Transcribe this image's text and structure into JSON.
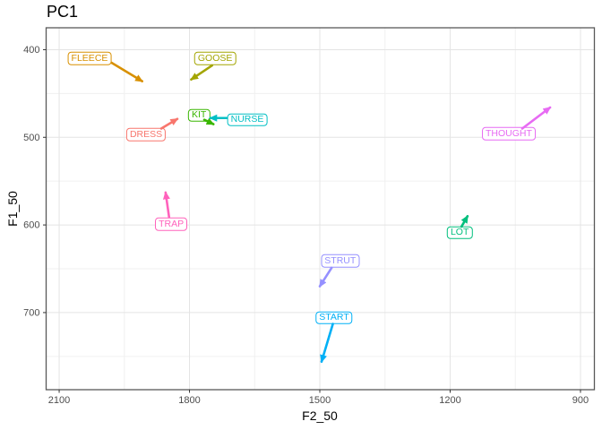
{
  "title": "PC1",
  "chart_data": {
    "type": "scatter",
    "title": "PC1",
    "xlabel": "F2_50",
    "ylabel": "F1_50",
    "grid": true,
    "legend": "none",
    "x_axis": {
      "label": "F2_50",
      "ticks": [
        2100,
        1800,
        1500,
        1200,
        900
      ],
      "minor_gridlines": [
        1950,
        1650,
        1350,
        1050
      ],
      "range": [
        2130,
        868
      ],
      "reversed": true
    },
    "y_axis": {
      "label": "F1_50",
      "ticks": [
        400,
        500,
        600,
        700
      ],
      "minor_gridlines": [
        450,
        550,
        650,
        750
      ],
      "range": [
        375,
        788
      ],
      "reversed": true
    },
    "series": [
      {
        "label": "FLEECE",
        "color": "#D89000",
        "label_pos": [
          2030,
          410
        ],
        "arrow_from": [
          1979,
          415
        ],
        "arrow_to": [
          1909,
          436
        ]
      },
      {
        "label": "GOOSE",
        "color": "#A3A500",
        "label_pos": [
          1741,
          410
        ],
        "arrow_from": [
          1748,
          418
        ],
        "arrow_to": [
          1796,
          434
        ]
      },
      {
        "label": "DRESS",
        "color": "#F8766D",
        "label_pos": [
          1900,
          497
        ],
        "arrow_from": [
          1865,
          490
        ],
        "arrow_to": [
          1828,
          479
        ]
      },
      {
        "label": "KIT",
        "color": "#39B600",
        "label_pos": [
          1778,
          475
        ],
        "arrow_from": [
          1766,
          480
        ],
        "arrow_to": [
          1745,
          485
        ]
      },
      {
        "label": "NURSE",
        "color": "#00BFC4",
        "label_pos": [
          1667,
          480
        ],
        "arrow_from": [
          1714,
          478
        ],
        "arrow_to": [
          1752,
          478
        ]
      },
      {
        "label": "THOUGHT",
        "color": "#E76BF3",
        "label_pos": [
          1065,
          496
        ],
        "arrow_from": [
          1034,
          490
        ],
        "arrow_to": [
          970,
          466
        ]
      },
      {
        "label": "TRAP",
        "color": "#FF62BC",
        "label_pos": [
          1842,
          599
        ],
        "arrow_from": [
          1847,
          591
        ],
        "arrow_to": [
          1855,
          563
        ]
      },
      {
        "label": "LOT",
        "color": "#00BF7D",
        "label_pos": [
          1178,
          609
        ],
        "arrow_from": [
          1174,
          602
        ],
        "arrow_to": [
          1160,
          590
        ]
      },
      {
        "label": "STRUT",
        "color": "#9590FF",
        "label_pos": [
          1453,
          641
        ],
        "arrow_from": [
          1473,
          649
        ],
        "arrow_to": [
          1500,
          670
        ]
      },
      {
        "label": "START",
        "color": "#00B0F6",
        "label_pos": [
          1467,
          706
        ],
        "arrow_from": [
          1470,
          713
        ],
        "arrow_to": [
          1496,
          756
        ]
      }
    ]
  },
  "style": {
    "grid_major_color": "#E4E4E4",
    "grid_minor_color": "#F0F0F0",
    "panel_border_color": "#595959",
    "tick_mark_color": "#333333",
    "tick_label_color": "#4D4D4D",
    "axis_title_color": "#000000",
    "panel_background": "#FFFFFF"
  }
}
